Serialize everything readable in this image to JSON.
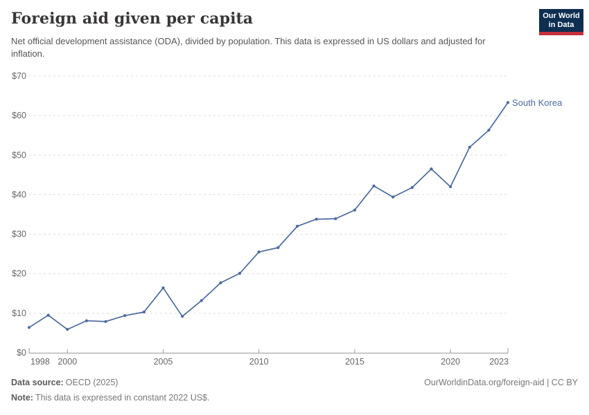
{
  "header": {
    "title": "Foreign aid given per capita",
    "subtitle": "Net official development assistance (ODA), divided by population. This data is expressed in US dollars and adjusted for inflation."
  },
  "logo": {
    "line1": "Our World",
    "line2": "in Data",
    "bg_color": "#0e2e52",
    "stripe_color": "#c6303c"
  },
  "chart_data": {
    "type": "line",
    "title": "Foreign aid given per capita",
    "xlabel": "",
    "ylabel": "",
    "x": [
      1998,
      1999,
      2000,
      2001,
      2002,
      2003,
      2004,
      2005,
      2006,
      2007,
      2008,
      2009,
      2010,
      2011,
      2012,
      2013,
      2014,
      2015,
      2016,
      2017,
      2018,
      2019,
      2020,
      2021,
      2022,
      2023
    ],
    "series": [
      {
        "name": "South Korea",
        "color": "#4C6A9C",
        "values": [
          6.4,
          9.5,
          5.9,
          8.1,
          7.9,
          9.4,
          10.3,
          16.4,
          9.2,
          13.2,
          17.7,
          20.1,
          25.5,
          26.6,
          32.0,
          33.8,
          33.9,
          36.1,
          42.2,
          39.4,
          41.8,
          46.5,
          42.0,
          52.0,
          56.3,
          63.3
        ]
      }
    ],
    "xlim": [
      1998,
      2023
    ],
    "ylim": [
      0,
      70
    ],
    "xticks": [
      1998,
      2000,
      2005,
      2010,
      2015,
      2020,
      2023
    ],
    "yticks": [
      0,
      10,
      20,
      30,
      40,
      50,
      60,
      70
    ],
    "ytick_prefix": "$",
    "grid": "horizontal-dashed",
    "legend": "end-of-line-label"
  },
  "colors": {
    "line": "#4C6A9C",
    "grid": "#dcdcdc",
    "axis": "#9a9a9a",
    "tick_text": "#666666"
  },
  "footer": {
    "source_label": "Data source:",
    "source_value": "OECD (2025)",
    "note_label": "Note:",
    "note_value": "This data is expressed in constant 2022 US$.",
    "link": "OurWorldinData.org/foreign-aid | CC BY"
  }
}
